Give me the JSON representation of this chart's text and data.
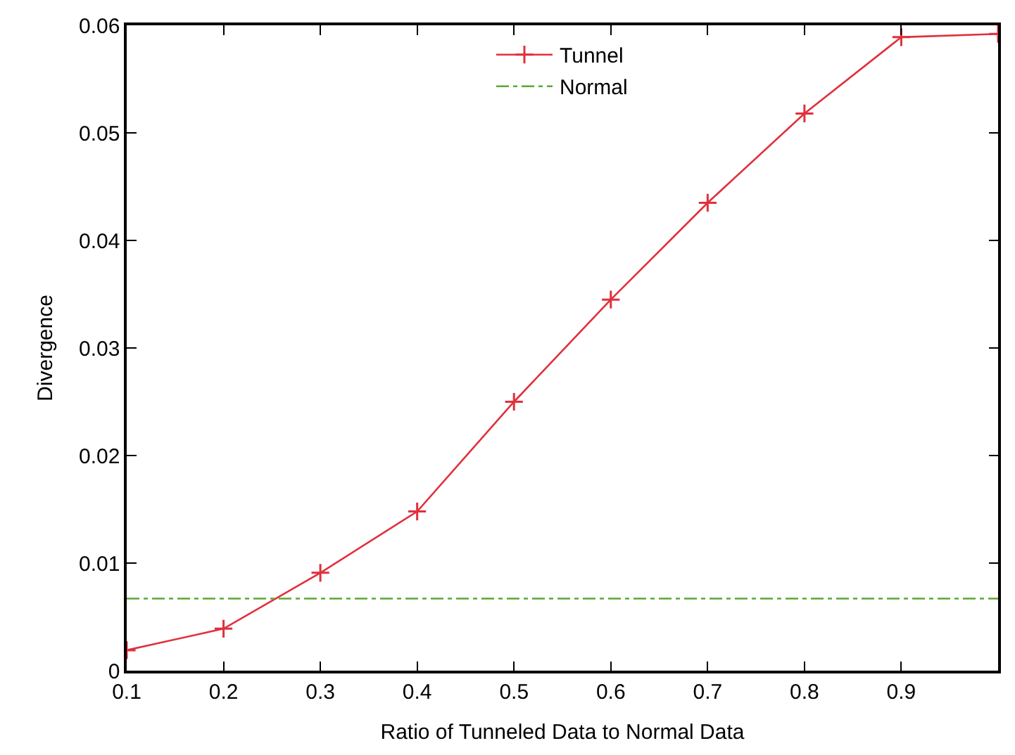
{
  "chart_data": {
    "type": "line",
    "xlabel": "Ratio of Tunneled Data to Normal Data",
    "ylabel": "Divergence",
    "xlim": [
      0.1,
      1.0
    ],
    "xticks": [
      0.1,
      0.2,
      0.3,
      0.4,
      0.5,
      0.6,
      0.7,
      0.8,
      0.9
    ],
    "ylim": [
      0,
      0.06
    ],
    "yticks": [
      0,
      0.01,
      0.02,
      0.03,
      0.04,
      0.05,
      0.06
    ],
    "legend": "top",
    "series": [
      {
        "name": "Tunnel",
        "color": "#e0303c",
        "marker": "cross",
        "line_style": "solid",
        "x": [
          0.1,
          0.2,
          0.3,
          0.4,
          0.5,
          0.6,
          0.7,
          0.8,
          0.9,
          1.0
        ],
        "values": [
          0.0019,
          0.0039,
          0.0091,
          0.0148,
          0.025,
          0.0345,
          0.0435,
          0.0518,
          0.0589,
          0.0592
        ]
      },
      {
        "name": "Normal",
        "color": "#5aa832",
        "marker": "none",
        "line_style": "dashed",
        "x": [
          0.1,
          1.0
        ],
        "values": [
          0.0067,
          0.0067
        ]
      }
    ]
  }
}
